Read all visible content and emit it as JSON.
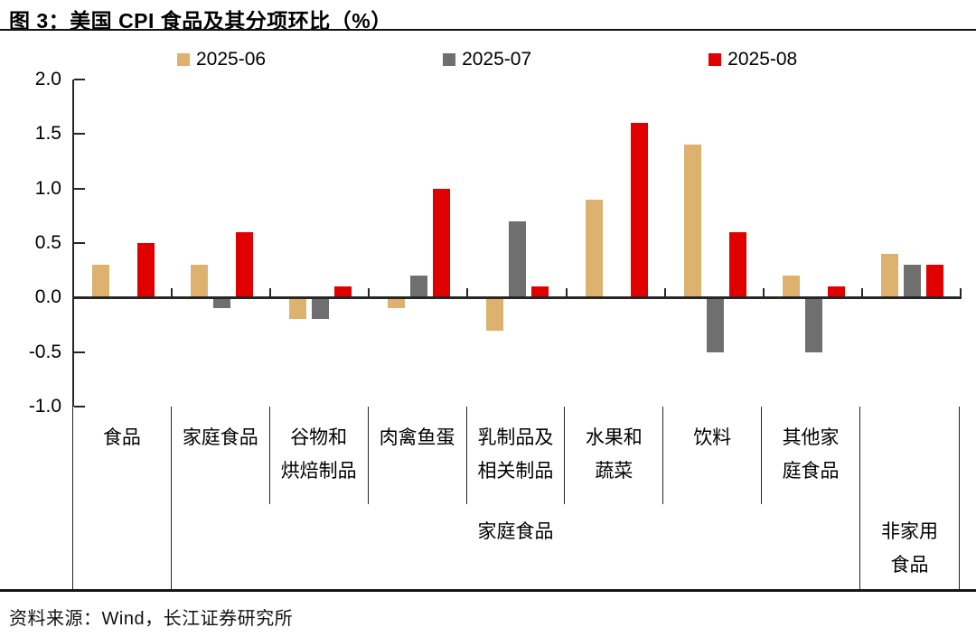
{
  "title": "图 3：美国 CPI 食品及其分项环比（%）",
  "source": "资料来源：Wind，长江证券研究所",
  "colors": {
    "axis": "#262626",
    "series_2025_06": "#DCB26E",
    "series_2025_07": "#6F6F6F",
    "series_2025_08": "#E00000"
  },
  "chart_data": {
    "type": "bar",
    "title": "图 3：美国 CPI 食品及其分项环比（%）",
    "categories": [
      "食品",
      "家庭食品",
      "谷物和烘焙制品",
      "肉禽鱼蛋",
      "乳制品及相关制品",
      "水果和蔬菜",
      "饮料",
      "其他家庭食品",
      "非家用食品"
    ],
    "axis_row1": [
      "食品",
      "家庭食品",
      "谷物和\n烘焙制品",
      "肉禽鱼蛋",
      "乳制品及\n相关制品",
      "水果和\n蔬菜",
      "饮料",
      "其他家\n庭食品",
      ""
    ],
    "axis_row2": [
      {
        "label": "",
        "span": 1
      },
      {
        "label": "家庭食品",
        "span": 7
      },
      {
        "label": "非家用\n食品",
        "span": 1
      }
    ],
    "series": [
      {
        "name": "2025-06",
        "color": "#DCB26E",
        "values": [
          0.3,
          0.3,
          -0.2,
          -0.1,
          -0.3,
          0.9,
          1.4,
          0.2,
          0.4
        ]
      },
      {
        "name": "2025-07",
        "color": "#6F6F6F",
        "values": [
          0.0,
          -0.1,
          -0.2,
          0.2,
          0.7,
          0.0,
          -0.5,
          -0.5,
          0.3
        ]
      },
      {
        "name": "2025-08",
        "color": "#E00000",
        "values": [
          0.5,
          0.6,
          0.1,
          1.0,
          0.1,
          1.6,
          0.6,
          0.1,
          0.3
        ]
      }
    ],
    "ylim": [
      -1.0,
      2.0
    ],
    "yticks": [
      2.0,
      1.5,
      1.0,
      0.5,
      0.0,
      -0.5,
      -1.0
    ],
    "ytick_labels": [
      "2.0",
      "1.5",
      "1.0",
      "0.5",
      "0.0",
      "-0.5",
      "-1.0"
    ],
    "ylabel": "",
    "xlabel": "",
    "grid": false,
    "legend_position": "top"
  }
}
